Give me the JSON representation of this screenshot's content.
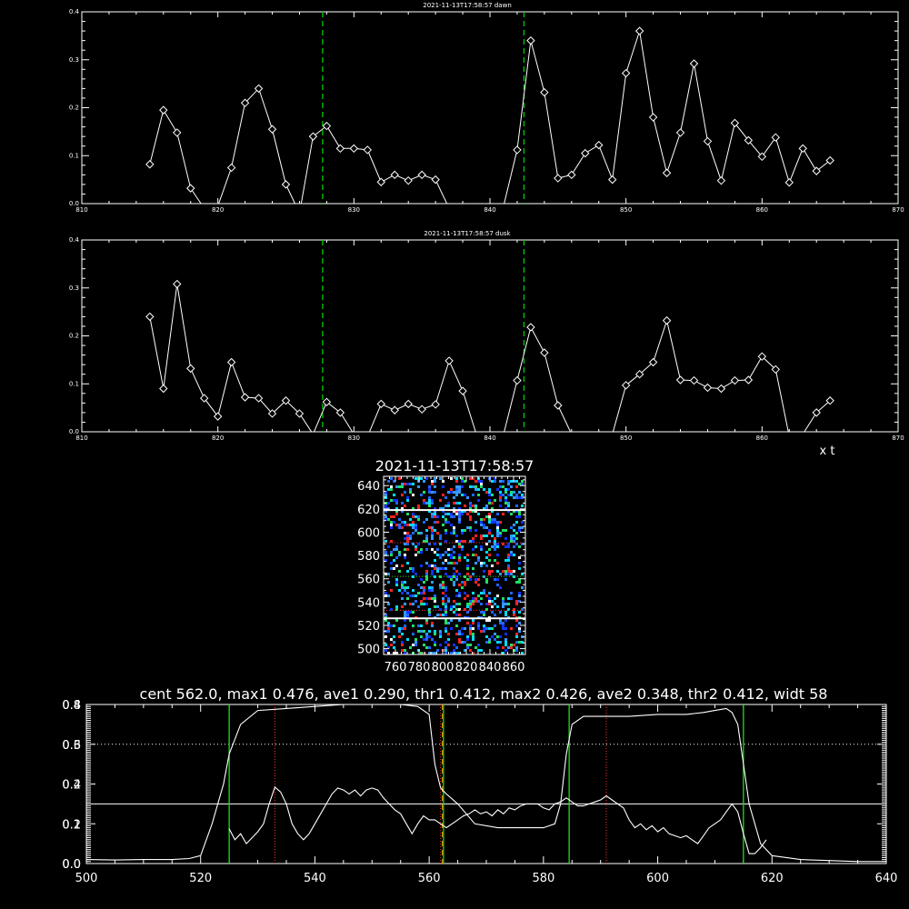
{
  "chart_data": [
    {
      "type": "line",
      "title": "2021-11-13T17:58:57 dawn",
      "xlim": [
        810,
        870
      ],
      "ylim": [
        0,
        0.4
      ],
      "xticks": [
        810,
        820,
        830,
        840,
        850,
        860,
        870
      ],
      "yticks": [
        0.0,
        0.1,
        0.2,
        0.3,
        0.4
      ],
      "xtick_labels": [
        "810",
        "820",
        "830",
        "840",
        "850",
        "860",
        "870"
      ],
      "ytick_labels": [
        "0.0",
        "0.1",
        "0.2",
        "0.3",
        "0.4"
      ],
      "xlabel": "",
      "vlines": [
        827.7,
        842.5
      ],
      "vline_color": "#00cc00",
      "series": [
        {
          "x": [
            815,
            816,
            817,
            818,
            819,
            820,
            821,
            822,
            823,
            824,
            825,
            826,
            827,
            828,
            829,
            830,
            831,
            832,
            833,
            834,
            835,
            836,
            837,
            838,
            839,
            840,
            841,
            842,
            843,
            844,
            845,
            846,
            847,
            848,
            849,
            850,
            851,
            852,
            853,
            854,
            855,
            856,
            857,
            858,
            859,
            860,
            861,
            862,
            863,
            864,
            865
          ],
          "values": [
            0.082,
            0.195,
            0.148,
            0.032,
            -0.01,
            -0.005,
            0.075,
            0.21,
            0.24,
            0.155,
            0.04,
            -0.02,
            0.14,
            0.162,
            0.115,
            0.115,
            0.112,
            0.045,
            0.06,
            0.048,
            0.06,
            0.05,
            -0.01,
            -0.005,
            -0.01,
            -0.005,
            -0.005,
            0.112,
            0.34,
            0.232,
            0.053,
            0.06,
            0.105,
            0.122,
            0.05,
            0.272,
            0.36,
            0.18,
            0.064,
            0.148,
            0.292,
            0.13,
            0.048,
            0.168,
            0.132,
            0.098,
            0.138,
            0.044,
            0.115,
            0.068,
            0.09
          ]
        }
      ]
    },
    {
      "type": "line",
      "title": "2021-11-13T17:58:57 dusk",
      "xlim": [
        810,
        870
      ],
      "ylim": [
        0,
        0.4
      ],
      "xticks": [
        810,
        820,
        830,
        840,
        850,
        860,
        870
      ],
      "yticks": [
        0.0,
        0.1,
        0.2,
        0.3,
        0.4
      ],
      "xtick_labels": [
        "810",
        "820",
        "830",
        "840",
        "850",
        "860",
        "870"
      ],
      "ytick_labels": [
        "0.0",
        "0.1",
        "0.2",
        "0.3",
        "0.4"
      ],
      "xlabel": "x t",
      "vlines": [
        827.7,
        842.5
      ],
      "vline_color": "#00cc00",
      "series": [
        {
          "x": [
            815,
            816,
            817,
            818,
            819,
            820,
            821,
            822,
            823,
            824,
            825,
            826,
            827,
            828,
            829,
            830,
            831,
            832,
            833,
            834,
            835,
            836,
            837,
            838,
            839,
            840,
            841,
            842,
            843,
            844,
            845,
            846,
            847,
            848,
            849,
            850,
            851,
            852,
            853,
            854,
            855,
            856,
            857,
            858,
            859,
            860,
            861,
            862,
            863,
            864,
            865
          ],
          "values": [
            0.24,
            0.09,
            0.308,
            0.132,
            0.07,
            0.032,
            0.145,
            0.072,
            0.07,
            0.038,
            0.065,
            0.038,
            -0.005,
            0.062,
            0.04,
            -0.005,
            -0.01,
            0.058,
            0.045,
            0.058,
            0.047,
            0.057,
            0.148,
            0.085,
            -0.005,
            -0.01,
            -0.005,
            0.107,
            0.218,
            0.165,
            0.055,
            -0.005,
            -0.01,
            -0.005,
            -0.005,
            0.097,
            0.12,
            0.145,
            0.232,
            0.108,
            0.107,
            0.092,
            0.09,
            0.107,
            0.108,
            0.157,
            0.13,
            -0.01,
            -0.005,
            0.04,
            0.065
          ]
        }
      ]
    },
    {
      "type": "heatmap",
      "title": "2021-11-13T17:58:57",
      "xlim": [
        750,
        870
      ],
      "ylim": [
        495,
        648
      ],
      "xtick_labels": [
        "760",
        "780",
        "800",
        "820",
        "840",
        "860"
      ],
      "xticks": [
        760,
        780,
        800,
        820,
        840,
        860
      ],
      "yticks": [
        500,
        520,
        540,
        560,
        580,
        600,
        620,
        640
      ],
      "ytick_labels": [
        "500",
        "520",
        "540",
        "560",
        "580",
        "600",
        "620",
        "640"
      ],
      "hlines_white": [
        526,
        619
      ],
      "hlines_red_dotted": [
        533,
        591
      ],
      "hlines_green_dotted": [
        562
      ],
      "palette": [
        "#1133ff",
        "#2266ff",
        "#3399ff",
        "#00ddff",
        "#22dd66",
        "#ff2222",
        "#ffffff"
      ]
    },
    {
      "type": "line",
      "title": "cent 562.0, max1 0.476, ave1 0.290, thr1 0.412, max2 0.426, ave2 0.348, thr2 0.412, widt 58",
      "xlim": [
        500,
        640
      ],
      "ylim": [
        0,
        0.8
      ],
      "xticks": [
        500,
        520,
        540,
        560,
        580,
        600,
        620,
        640
      ],
      "xtick_labels": [
        "500",
        "520",
        "540",
        "560",
        "580",
        "600",
        "620",
        "640"
      ],
      "yticks": [
        0.0,
        0.2,
        0.4,
        0.6,
        0.8
      ],
      "ytick_labels": [
        "0.0",
        "0.2",
        "0.4",
        "0.6",
        "0.8"
      ],
      "yticks_right": [
        0.0,
        0.1,
        0.2,
        0.3,
        0.4
      ],
      "ytick_labels_right": [
        "0.0",
        "0.1",
        "0.2",
        "0.3",
        "0.4"
      ],
      "hline_dotted": 0.6,
      "hline_solid": 0.3,
      "vlines_green": [
        525,
        562.5,
        584.5,
        615
      ],
      "vlines_red_dotted": [
        533,
        562,
        591
      ],
      "vline_orange": 562.3,
      "series": [
        {
          "x": [
            500,
            505,
            510,
            515,
            518,
            520,
            522,
            524,
            525,
            527,
            530,
            535,
            540,
            545,
            550,
            555,
            558,
            560,
            561,
            562,
            563,
            565,
            568,
            572,
            576,
            580,
            582,
            583,
            584,
            585,
            587,
            590,
            595,
            600,
            605,
            608,
            610,
            612,
            613,
            614,
            615,
            616,
            618,
            620,
            625,
            630,
            635,
            640
          ],
          "values": [
            0.02,
            0.018,
            0.02,
            0.02,
            0.025,
            0.04,
            0.2,
            0.4,
            0.55,
            0.7,
            0.77,
            0.78,
            0.79,
            0.8,
            0.8,
            0.8,
            0.79,
            0.75,
            0.5,
            0.38,
            0.35,
            0.3,
            0.2,
            0.18,
            0.18,
            0.18,
            0.2,
            0.3,
            0.55,
            0.7,
            0.74,
            0.74,
            0.74,
            0.75,
            0.75,
            0.76,
            0.77,
            0.78,
            0.76,
            0.7,
            0.5,
            0.3,
            0.1,
            0.04,
            0.02,
            0.015,
            0.01,
            0.01
          ]
        },
        {
          "x": [
            525,
            526,
            527,
            528,
            529,
            530,
            531,
            532,
            533,
            534,
            535,
            536,
            537,
            538,
            539,
            540,
            541,
            542,
            543,
            544,
            545,
            546,
            547,
            548,
            549,
            550,
            551,
            552,
            553,
            554,
            555,
            556,
            557,
            558,
            559,
            560,
            561,
            562,
            563,
            564,
            565,
            566,
            567,
            568,
            569,
            570,
            571,
            572,
            573,
            574,
            575,
            576,
            577,
            578,
            579,
            580,
            581,
            582,
            583,
            584,
            585,
            586,
            587,
            588,
            589,
            590,
            591,
            592,
            593,
            594,
            595,
            596,
            597,
            598,
            599,
            600,
            601,
            602,
            603,
            604,
            605,
            606,
            607,
            608,
            609,
            610,
            611,
            612,
            613,
            614,
            615,
            616,
            617,
            618,
            619
          ],
          "values": [
            0.175,
            0.12,
            0.15,
            0.1,
            0.13,
            0.16,
            0.2,
            0.3,
            0.385,
            0.36,
            0.3,
            0.2,
            0.15,
            0.12,
            0.15,
            0.2,
            0.25,
            0.3,
            0.35,
            0.38,
            0.37,
            0.35,
            0.37,
            0.34,
            0.37,
            0.38,
            0.37,
            0.33,
            0.3,
            0.27,
            0.25,
            0.2,
            0.15,
            0.2,
            0.24,
            0.22,
            0.22,
            0.2,
            0.18,
            0.2,
            0.22,
            0.24,
            0.25,
            0.27,
            0.25,
            0.26,
            0.24,
            0.27,
            0.25,
            0.28,
            0.27,
            0.29,
            0.3,
            0.3,
            0.3,
            0.28,
            0.27,
            0.3,
            0.31,
            0.33,
            0.31,
            0.29,
            0.29,
            0.3,
            0.31,
            0.32,
            0.34,
            0.32,
            0.3,
            0.28,
            0.22,
            0.18,
            0.2,
            0.17,
            0.19,
            0.16,
            0.18,
            0.15,
            0.14,
            0.13,
            0.14,
            0.12,
            0.1,
            0.14,
            0.18,
            0.2,
            0.22,
            0.26,
            0.3,
            0.26,
            0.15,
            0.05,
            0.05,
            0.08,
            0.12
          ]
        }
      ]
    }
  ]
}
